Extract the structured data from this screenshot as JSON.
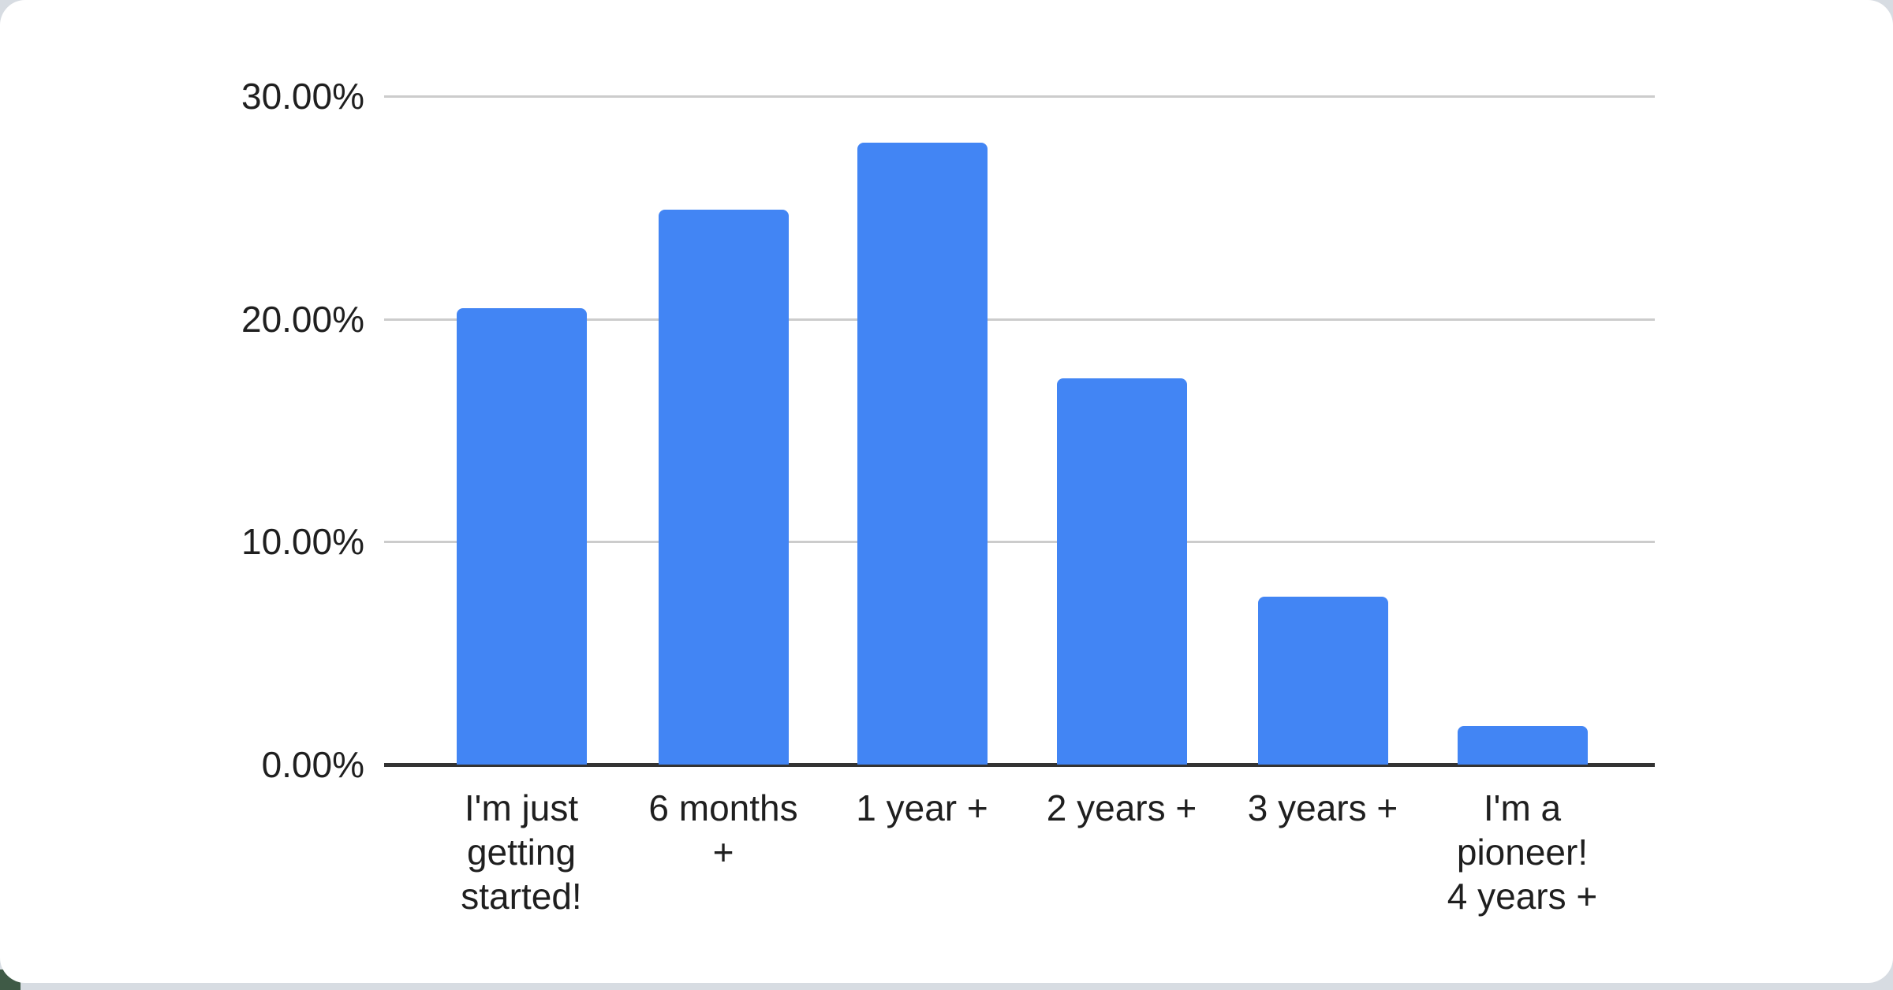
{
  "chart_data": {
    "type": "bar",
    "title": "",
    "categories": [
      "I'm just getting started!",
      "6 months +",
      "1 year +",
      "2 years +",
      "3 years +",
      "I'm a pioneer! 4 years +"
    ],
    "values": [
      20.5,
      24.9,
      27.9,
      17.35,
      7.55,
      1.75
    ],
    "value_unit": "percent",
    "x_tick_lines": [
      "I'm just\ngetting\nstarted!",
      "6 months\n+",
      "1 year +",
      "2 years +",
      "3 years +",
      "I'm a\npioneer!\n4 years +"
    ],
    "y_ticks": [
      {
        "label": "30.00%",
        "value": 30
      },
      {
        "label": "20.00%",
        "value": 20
      },
      {
        "label": "10.00%",
        "value": 10
      },
      {
        "label": "0.00%",
        "value": 0
      }
    ],
    "ylim": [
      0,
      30
    ],
    "xlabel": "",
    "ylabel": "",
    "grid": "horizontal",
    "legend": "none",
    "colors": {
      "bar": "#4285f4",
      "gridline": "#cccccc",
      "axis_line": "#333333",
      "label_text": "#1f1f1f",
      "card_background": "#ffffff",
      "page_background": "#d7dce2",
      "corner_accent": "#3f5a46"
    }
  }
}
